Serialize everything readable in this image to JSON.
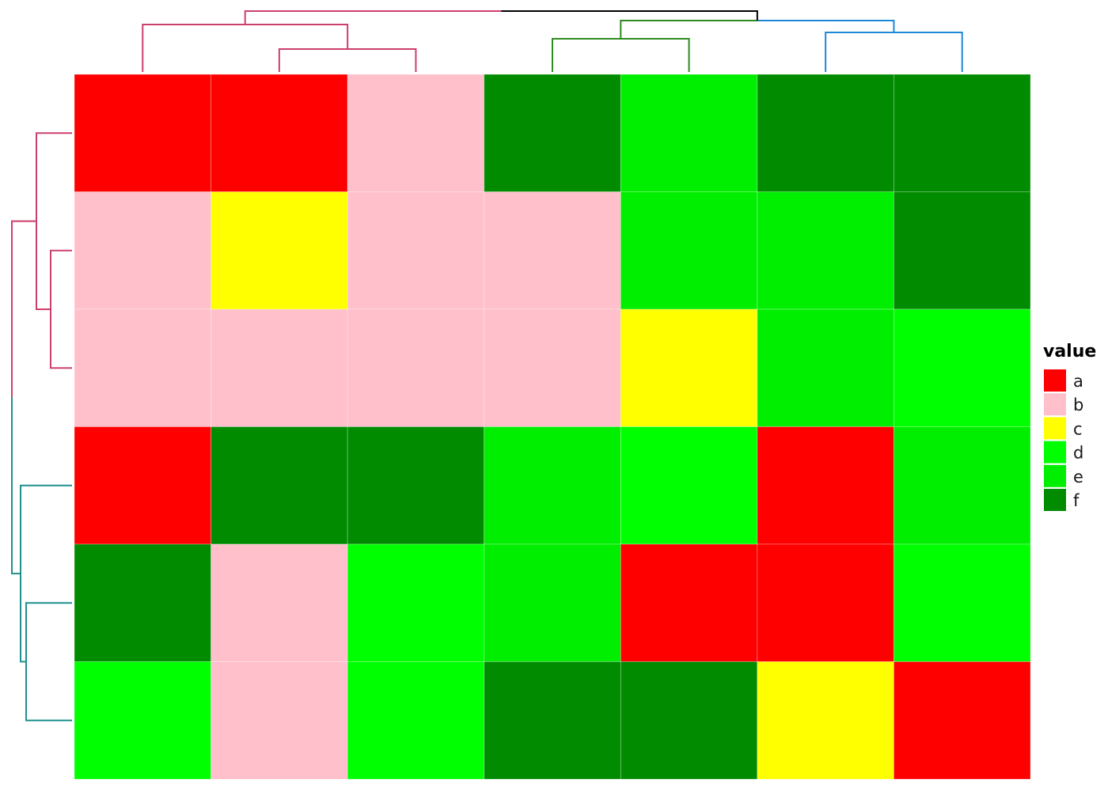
{
  "chart_data": {
    "type": "heatmap",
    "title": "",
    "xlabel": "",
    "ylabel": "",
    "grid": [
      [
        "a",
        "a",
        "b",
        "f",
        "e",
        "f",
        "f"
      ],
      [
        "b",
        "c",
        "b",
        "b",
        "e",
        "e",
        "f"
      ],
      [
        "b",
        "b",
        "b",
        "b",
        "c",
        "e",
        "d"
      ],
      [
        "a",
        "f",
        "f",
        "e",
        "d",
        "a",
        "e"
      ],
      [
        "f",
        "b",
        "d",
        "e",
        "a",
        "a",
        "d"
      ],
      [
        "d",
        "b",
        "d",
        "f",
        "f",
        "c",
        "a"
      ]
    ],
    "legend": {
      "title": "value",
      "position": "right",
      "entries": [
        {
          "label": "a",
          "color": "#FF0000"
        },
        {
          "label": "b",
          "color": "#FFC0CB"
        },
        {
          "label": "c",
          "color": "#FFFF00"
        },
        {
          "label": "d",
          "color": "#00FF00"
        },
        {
          "label": "e",
          "color": "#00EE00"
        },
        {
          "label": "f",
          "color": "#008B00"
        }
      ]
    },
    "dendrograms": {
      "columns": {
        "branch_colors": [
          "#CD3F6B",
          "#2E8B1F",
          "#1E88D8"
        ],
        "root_color": "#000000"
      },
      "rows": {
        "branch_colors": [
          "#CD3F6B",
          "#1F8F8F"
        ]
      }
    }
  }
}
